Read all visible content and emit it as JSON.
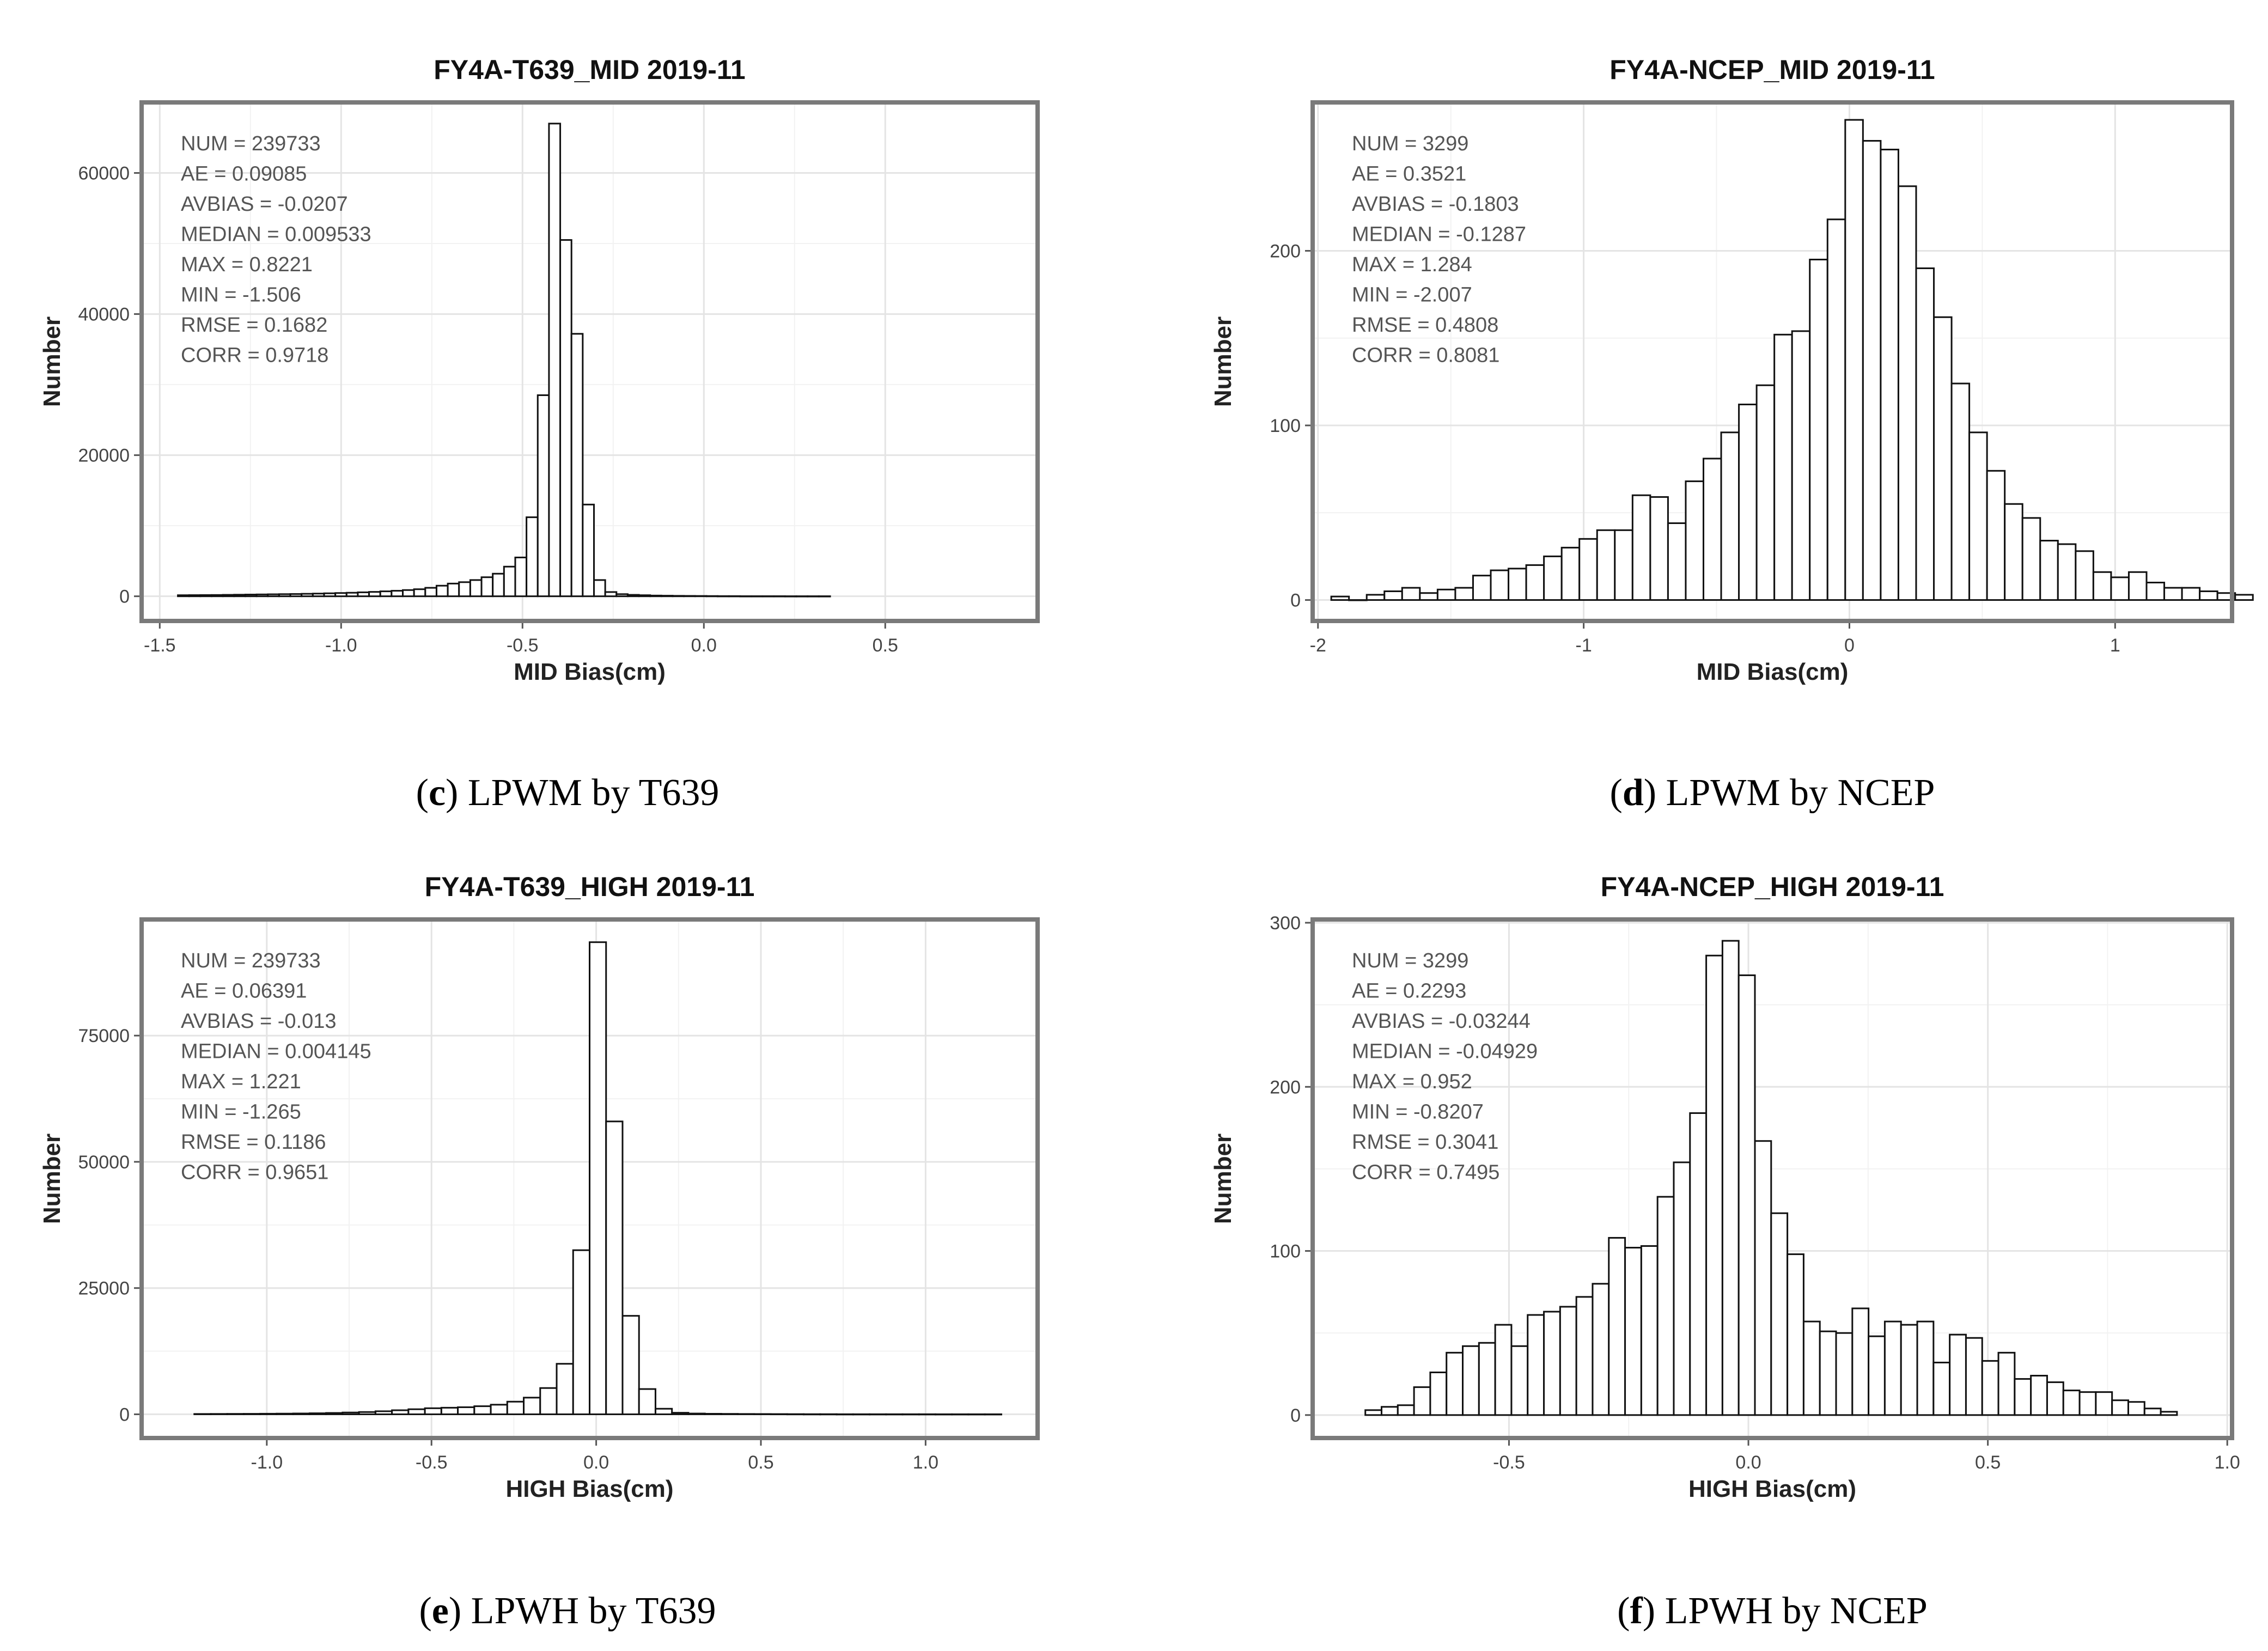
{
  "chart_data": [
    {
      "panel": "c",
      "type": "bar",
      "title": "FY4A-T639_MID 2019-11",
      "xlabel": "MID Bias(cm)",
      "ylabel": "Number",
      "xlim": [
        -1.55,
        0.92
      ],
      "ylim": [
        -3500,
        70000
      ],
      "xticks": [
        -1.5,
        -1.0,
        -0.5,
        0.0,
        0.5
      ],
      "xtick_labels": [
        "-1.5",
        "-1.0",
        "-0.5",
        "0.0",
        "0.5"
      ],
      "yticks": [
        0,
        20000,
        40000,
        60000
      ],
      "ytick_labels": [
        "0",
        "20000",
        "40000",
        "60000"
      ],
      "bin_start": -1.45,
      "bin_width": 0.031,
      "values": [
        150,
        160,
        170,
        180,
        200,
        220,
        240,
        260,
        280,
        300,
        320,
        350,
        380,
        420,
        460,
        500,
        560,
        620,
        700,
        780,
        880,
        1000,
        1200,
        1500,
        1800,
        2000,
        2300,
        2700,
        3200,
        4200,
        5500,
        11200,
        28500,
        67000,
        50500,
        37200,
        13000,
        2300,
        600,
        300,
        200,
        150,
        100,
        80,
        60,
        50,
        40,
        30,
        20,
        20,
        10,
        10,
        10,
        10,
        5,
        5,
        5,
        5
      ],
      "stats": [
        "NUM = 239733",
        "AE = 0.09085",
        "AVBIAS = -0.0207",
        "MEDIAN = 0.009533",
        "MAX = 0.8221",
        "MIN = -1.506",
        "RMSE = 0.1682",
        "CORR = 0.9718"
      ],
      "caption": {
        "open": "(",
        "letter": "c",
        "rest": ") LPWM by T639"
      }
    },
    {
      "panel": "d",
      "type": "bar",
      "title": "FY4A-NCEP_MID 2019-11",
      "xlabel": "MID Bias(cm)",
      "ylabel": "Number",
      "xlim": [
        -2.02,
        1.44
      ],
      "ylim": [
        -12,
        285
      ],
      "xticks": [
        -2,
        -1,
        0,
        1
      ],
      "xtick_labels": [
        "-2",
        "-1",
        "0",
        "1"
      ],
      "yticks": [
        0,
        100,
        200
      ],
      "ytick_labels": [
        "0",
        "100",
        "200"
      ],
      "bin_start": -1.95,
      "bin_width": 0.0667,
      "values": [
        2,
        0,
        3,
        5,
        7,
        4,
        6,
        7,
        14,
        17,
        18,
        20,
        25,
        30,
        35,
        40,
        40,
        60,
        59,
        44,
        68,
        81,
        96,
        112,
        123,
        152,
        154,
        195,
        218,
        275,
        263,
        258,
        237,
        190,
        162,
        124,
        96,
        74,
        55,
        47,
        34,
        32,
        28,
        16,
        13,
        16,
        10,
        7,
        7,
        5,
        4,
        3
      ],
      "stats": [
        "NUM = 3299",
        "AE = 0.3521",
        "AVBIAS = -0.1803",
        "MEDIAN = -0.1287",
        "MAX = 1.284",
        "MIN = -2.007",
        "RMSE = 0.4808",
        "CORR = 0.8081"
      ],
      "caption": {
        "open": "(",
        "letter": "d",
        "rest": ") LPWM by NCEP"
      }
    },
    {
      "panel": "e",
      "type": "bar",
      "title": "FY4A-T639_HIGH 2019-11",
      "xlabel": "HIGH Bias(cm)",
      "ylabel": "Number",
      "xlim": [
        -1.38,
        1.34
      ],
      "ylim": [
        -4700,
        98000
      ],
      "xticks": [
        -1.0,
        -0.5,
        0.0,
        0.5,
        1.0
      ],
      "xtick_labels": [
        "-1.0",
        "-0.5",
        "0.0",
        "0.5",
        "1.0"
      ],
      "yticks": [
        0,
        25000,
        50000,
        75000
      ],
      "ytick_labels": [
        "0",
        "25000",
        "50000",
        "75000"
      ],
      "bin_start": -1.22,
      "bin_width": 0.05,
      "values": [
        60,
        70,
        80,
        90,
        110,
        130,
        160,
        200,
        260,
        350,
        450,
        600,
        800,
        1000,
        1200,
        1300,
        1400,
        1600,
        1900,
        2500,
        3300,
        5200,
        10000,
        32500,
        93500,
        58000,
        19500,
        5000,
        1100,
        300,
        150,
        100,
        80,
        60,
        50,
        40,
        30,
        20,
        20,
        10,
        10,
        10,
        10,
        10,
        10,
        5,
        5,
        5,
        5
      ],
      "stats": [
        "NUM = 239733",
        "AE = 0.06391",
        "AVBIAS = -0.013",
        "MEDIAN = 0.004145",
        "MAX = 1.221",
        "MIN = -1.265",
        "RMSE = 0.1186",
        "CORR = 0.9651"
      ],
      "caption": {
        "open": "(",
        "letter": "e",
        "rest": ") LPWH by T639"
      }
    },
    {
      "panel": "f",
      "type": "bar",
      "title": "FY4A-NCEP_HIGH 2019-11",
      "xlabel": "HIGH Bias(cm)",
      "ylabel": "Number",
      "xlim": [
        -0.91,
        1.01
      ],
      "ylim": [
        -14,
        302
      ],
      "xticks": [
        -0.5,
        0.0,
        0.5,
        1.0
      ],
      "xtick_labels": [
        "-0.5",
        "0.0",
        "0.5",
        "1.0"
      ],
      "yticks": [
        0,
        100,
        200,
        300
      ],
      "ytick_labels": [
        "0",
        "100",
        "200",
        "300"
      ],
      "bin_start": -0.8,
      "bin_width": 0.0339,
      "values": [
        3,
        5,
        6,
        17,
        26,
        38,
        42,
        44,
        55,
        42,
        61,
        63,
        66,
        72,
        80,
        108,
        102,
        103,
        133,
        154,
        184,
        280,
        289,
        268,
        167,
        123,
        98,
        57,
        51,
        50,
        65,
        48,
        57,
        55,
        57,
        32,
        49,
        47,
        33,
        38,
        22,
        24,
        20,
        15,
        14,
        14,
        9,
        8,
        4,
        2
      ],
      "stats": [
        "NUM = 3299",
        "AE = 0.2293",
        "AVBIAS = -0.03244",
        "MEDIAN = -0.04929",
        "MAX = 0.952",
        "MIN = -0.8207",
        "RMSE = 0.3041",
        "CORR = 0.7495"
      ],
      "caption": {
        "open": "(",
        "letter": "f",
        "rest": ") LPWH by NCEP"
      }
    }
  ]
}
